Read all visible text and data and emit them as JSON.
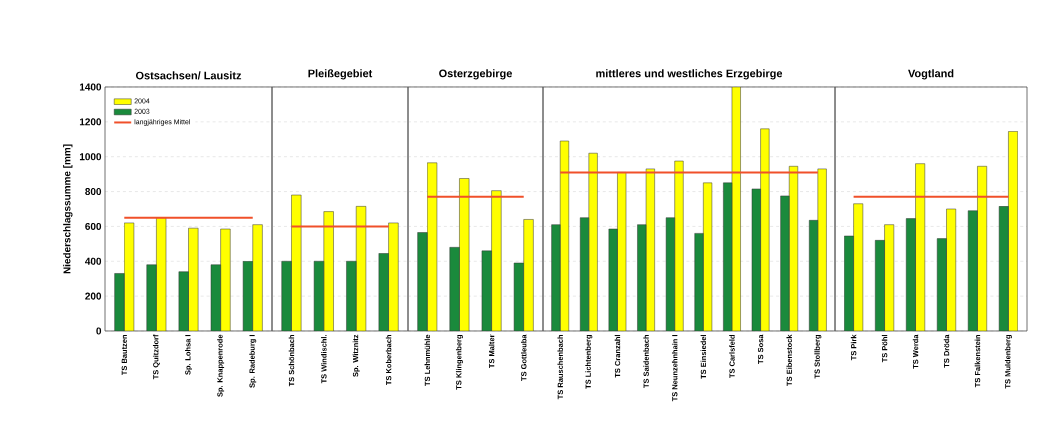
{
  "chart_data": [
    {
      "type": "bar",
      "title": "Ostsachsen/ Lausitz",
      "ylabel": "Niederschlagssumme [mm]",
      "categories": [
        "TS Bautzen",
        "TS Quitzdorf",
        "Sp. Lohsa I",
        "Sp. Knappenrode",
        "Sp. Radeburg I"
      ],
      "series": [
        {
          "name": "2004",
          "color": "#ffff00",
          "values": [
            620,
            650,
            590,
            585,
            610
          ]
        },
        {
          "name": "2003",
          "color": "#1a8a3c",
          "values": [
            330,
            380,
            340,
            380,
            400
          ]
        },
        {
          "name": "langjähriges Mittel",
          "type": "line",
          "color": "#f0502a",
          "values": [
            650,
            650,
            650,
            650,
            650
          ]
        }
      ],
      "ylim": [
        0,
        1400
      ],
      "yticks": [
        0,
        200,
        400,
        600,
        800,
        1000,
        1200,
        1400
      ],
      "grid": "y",
      "legend": "top left"
    },
    {
      "type": "bar",
      "title": "Pleißegebiet",
      "categories": [
        "TS Schönbach",
        "TS Windischl.",
        "Sp. Witznitz",
        "TS Koberbach"
      ],
      "series": [
        {
          "color": "#ffff00",
          "values": [
            780,
            685,
            715,
            620
          ]
        },
        {
          "color": "#1a8a3c",
          "values": [
            400,
            400,
            400,
            445
          ]
        },
        {
          "type": "line",
          "color": "#f0502a",
          "values": [
            600,
            600,
            600,
            600
          ]
        }
      ],
      "ylim": [
        0,
        1400
      ],
      "grid": "y",
      "tick_labels": "x"
    },
    {
      "type": "bar",
      "title": "Osterzgebirge",
      "categories": [
        "TS Lehnmühle",
        "TS Klingenberg",
        "TS Malter",
        "TS Gottleuba"
      ],
      "series": [
        {
          "color": "#ffff00",
          "values": [
            965,
            875,
            805,
            640
          ]
        },
        {
          "color": "#1a8a3c",
          "values": [
            565,
            480,
            460,
            390
          ]
        },
        {
          "type": "line",
          "color": "#f0502a",
          "values": [
            770,
            770,
            770,
            770
          ]
        }
      ],
      "ylim": [
        0,
        1400
      ],
      "grid": "y",
      "tick_labels": "x"
    },
    {
      "type": "bar",
      "title": "mittleres und westliches Erzgebirge",
      "categories": [
        "TS Rauschenbach",
        "TS Lichtenberg",
        "TS Cranzahl",
        "TS Saidenbach",
        "TS Neunzehnhain I",
        "TS Einsiedel",
        "TS Carlsfeld",
        "TS Sosa",
        "TS Eibenstock",
        "TS Stollberg"
      ],
      "series": [
        {
          "color": "#ffff00",
          "values": [
            1090,
            1020,
            910,
            930,
            975,
            850,
            1400,
            1160,
            945,
            930
          ]
        },
        {
          "color": "#1a8a3c",
          "values": [
            610,
            650,
            585,
            610,
            650,
            560,
            850,
            815,
            775,
            635
          ]
        },
        {
          "type": "line",
          "color": "#f0502a",
          "values": [
            910,
            910,
            910,
            910,
            910,
            910,
            910,
            910,
            910,
            910
          ]
        }
      ],
      "ylim": [
        0,
        1400
      ],
      "grid": "y",
      "tick_labels": "x"
    },
    {
      "type": "bar",
      "title": "Vogtland",
      "categories": [
        "TS Pirk",
        "TS Pöhl",
        "TS Werda",
        "TS Dröda",
        "TS Falkenstein",
        "TS Muldenberg"
      ],
      "series": [
        {
          "color": "#ffff00",
          "values": [
            730,
            610,
            960,
            700,
            945,
            1145
          ]
        },
        {
          "color": "#1a8a3c",
          "values": [
            545,
            520,
            645,
            530,
            690,
            715
          ]
        },
        {
          "type": "line",
          "color": "#f0502a",
          "values": [
            770,
            770,
            770,
            770,
            770,
            770
          ]
        }
      ],
      "ylim": [
        0,
        1400
      ],
      "grid": "y",
      "tick_labels": "x"
    }
  ]
}
